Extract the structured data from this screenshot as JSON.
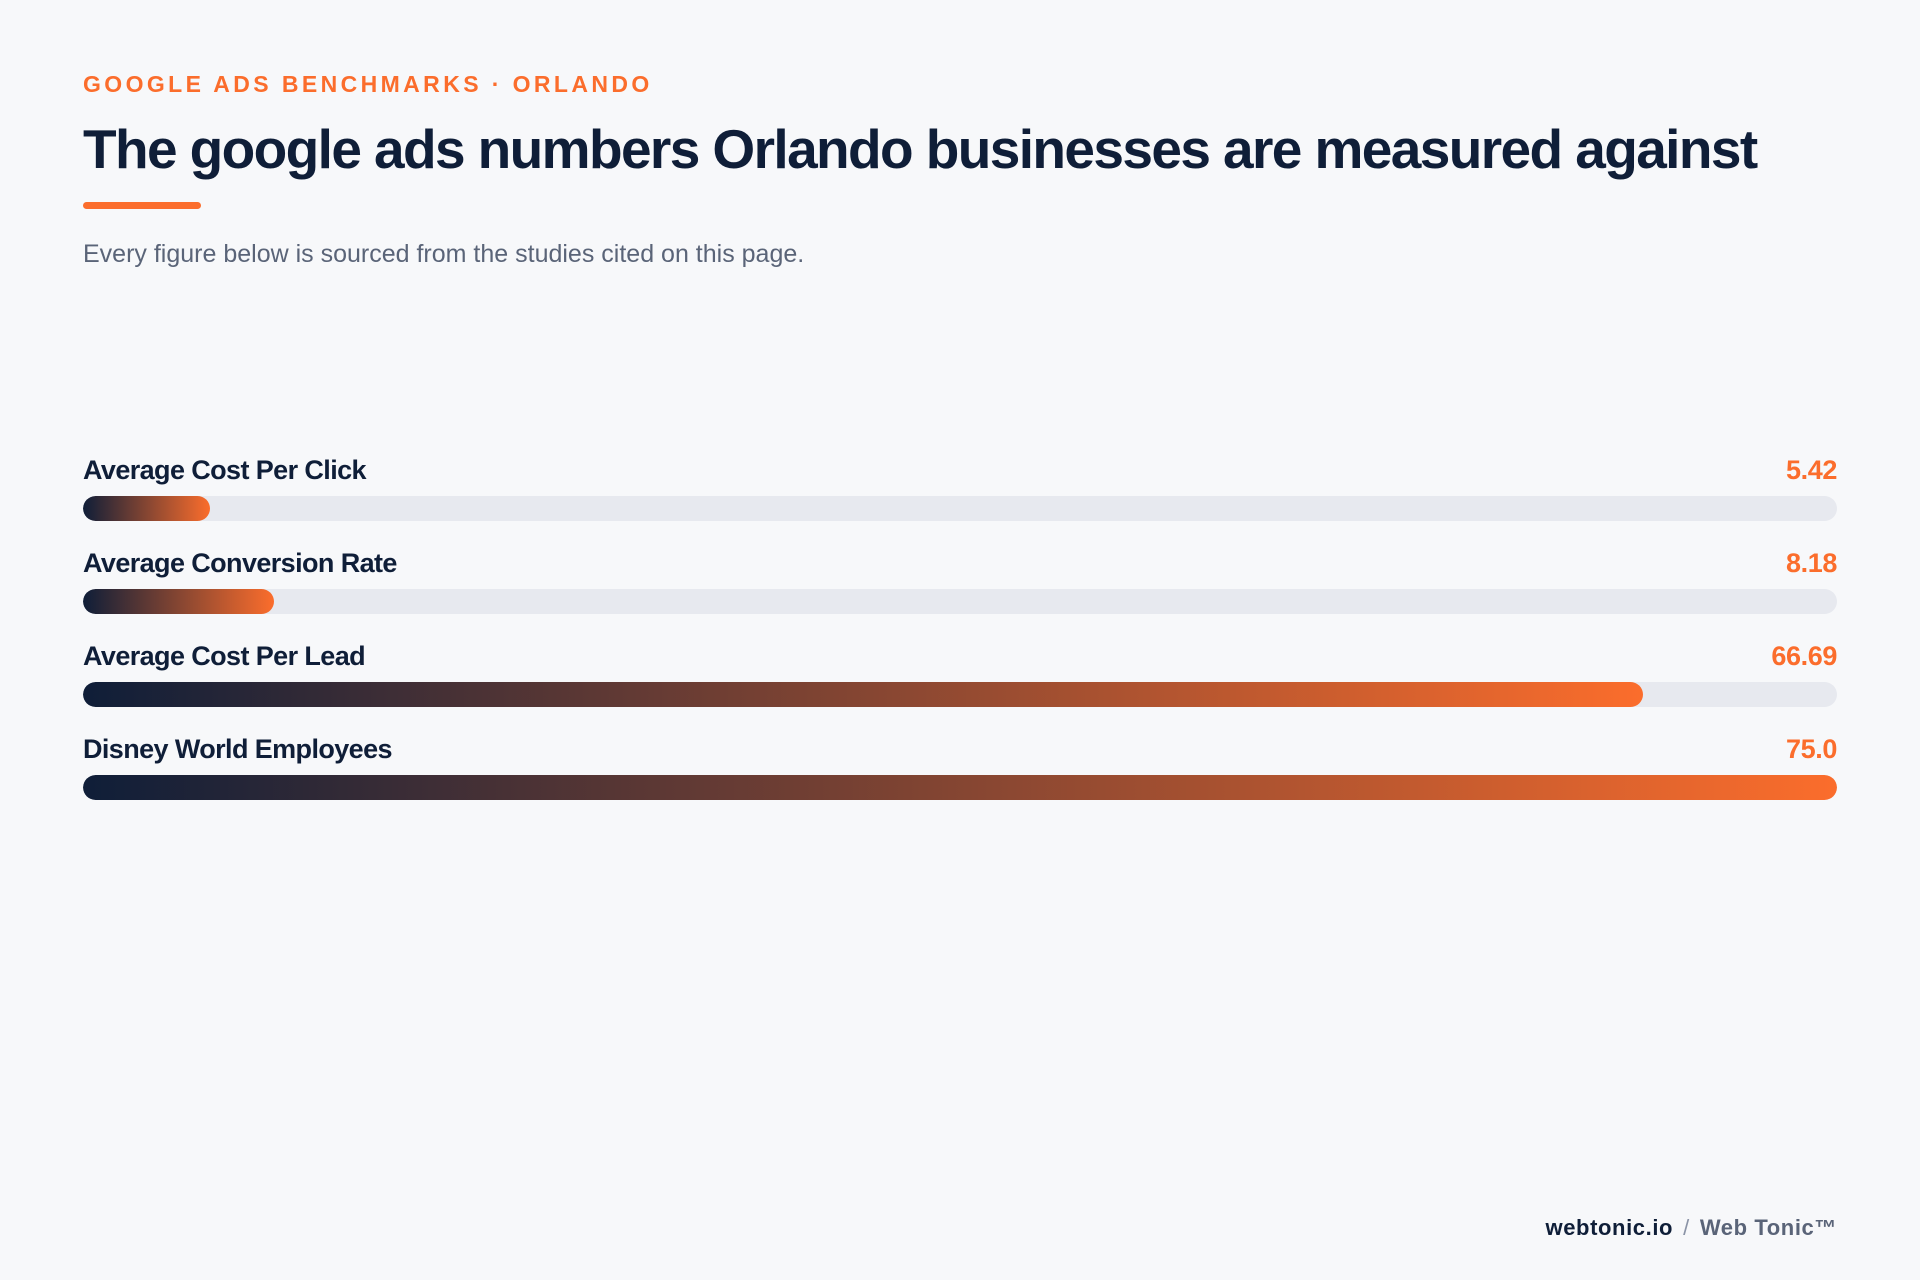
{
  "header": {
    "eyebrow": "GOOGLE ADS BENCHMARKS · ORLANDO",
    "title": "The google ads numbers Orlando businesses are measured against",
    "subtitle": "Every figure below is sourced from the studies cited on this page."
  },
  "chart_data": {
    "type": "bar",
    "orientation": "horizontal",
    "categories": [
      "Average Cost Per Click",
      "Average Conversion Rate",
      "Average Cost Per Lead",
      "Disney World Employees"
    ],
    "values": [
      5.42,
      8.18,
      66.69,
      75.0
    ],
    "value_labels": [
      "5.42",
      "8.18",
      "66.69",
      "75.0"
    ],
    "xlim": [
      0,
      75.0
    ],
    "grid": false,
    "legend": "none"
  },
  "colors": {
    "accent": "#fb6d2c",
    "ink": "#0f1e38",
    "track": "#e7e9ef",
    "background": "#f7f8fa"
  },
  "footer": {
    "site": "webtonic.io",
    "separator": "/",
    "brand": "Web Tonic™"
  }
}
